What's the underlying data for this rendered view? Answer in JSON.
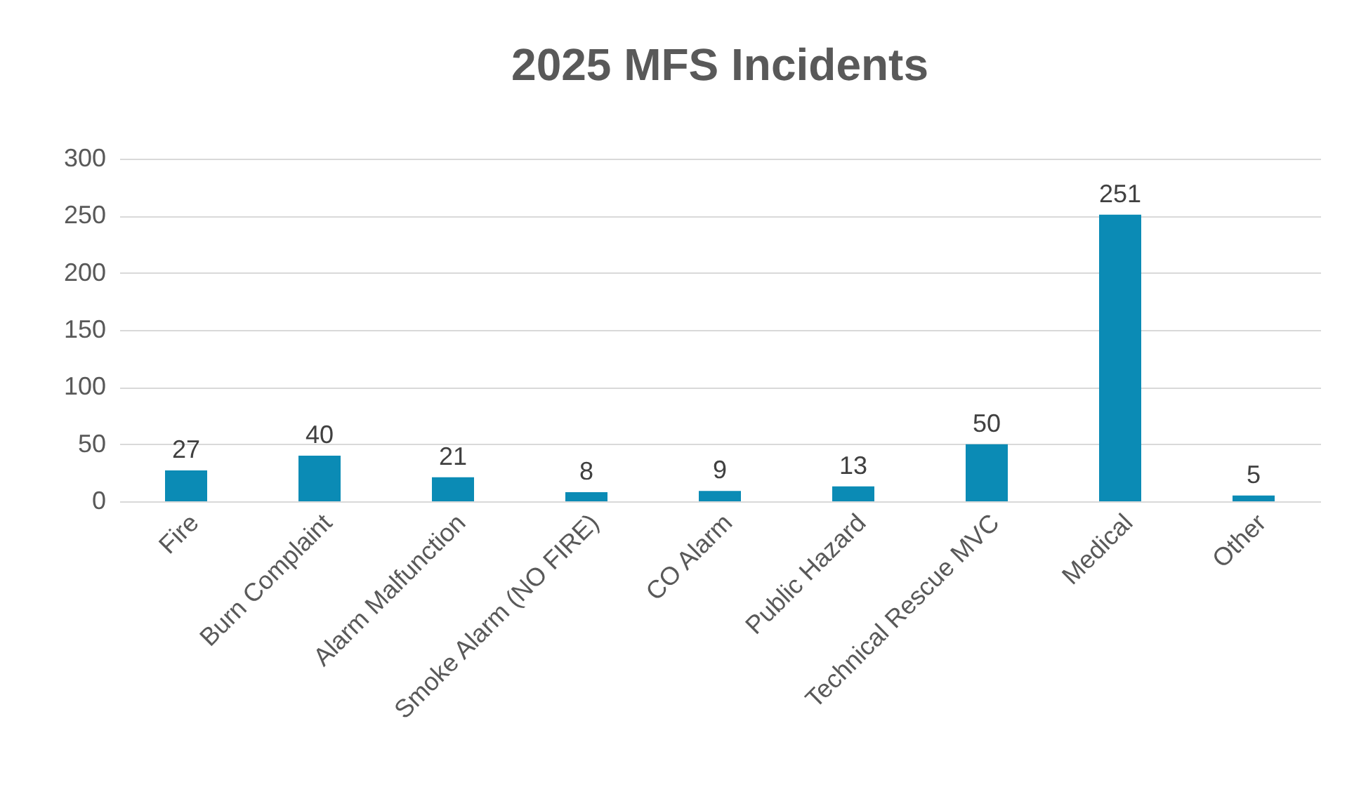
{
  "chart_data": {
    "type": "bar",
    "title": "2025 MFS Incidents",
    "categories": [
      "Fire",
      "Burn Complaint",
      "Alarm Malfunction",
      "Smoke Alarm (NO FIRE)",
      "CO Alarm",
      "Public Hazard",
      "Technical Rescue MVC",
      "Medical",
      "Other"
    ],
    "values": [
      27,
      40,
      21,
      8,
      9,
      13,
      50,
      251,
      5
    ],
    "color": "#0b8bb5",
    "ylim": [
      0,
      300
    ],
    "yticks": [
      0,
      50,
      100,
      150,
      200,
      250,
      300
    ],
    "grid": "y",
    "data_labels": true
  }
}
